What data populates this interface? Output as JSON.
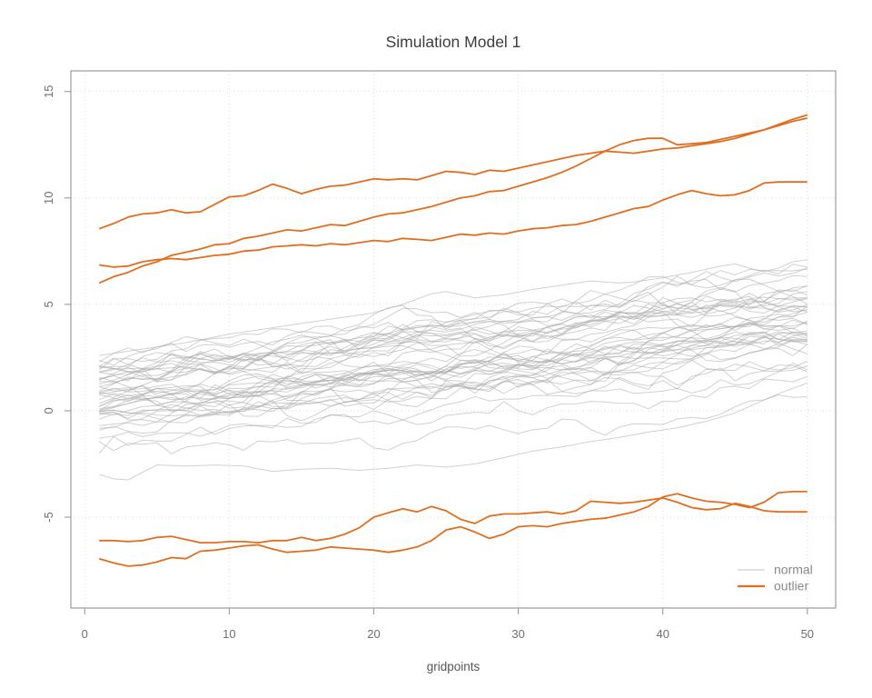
{
  "chart_data": {
    "type": "line",
    "title": "Simulation Model 1",
    "xlabel": "gridpoints",
    "ylabel": "",
    "x_ticks": [
      0,
      10,
      20,
      30,
      40,
      50
    ],
    "y_ticks": [
      -5,
      0,
      5,
      10,
      15
    ],
    "xlim": [
      -0.96,
      51.96
    ],
    "ylim": [
      -9.27,
      15.97
    ],
    "grid": "dotted light-gray gridlines at every x and y tick",
    "n_gridpoints": 50,
    "x_range": [
      1,
      50
    ],
    "colors": {
      "outlier": "#E06E1E",
      "normal": "#C6C6C6",
      "normal_stroke": "#AAAAAA",
      "normal_opacity": 0.55,
      "grid": "#DADADA",
      "frame": "#9B9B9B",
      "tick_text": "#6E6E6E",
      "legend_text": "#8A8A8A"
    },
    "legend": {
      "position": "bottom-right-inside",
      "entries": [
        {
          "label": "normal",
          "color": "#C6C6C6",
          "line_width": 1.1
        },
        {
          "label": "outlier",
          "color": "#E06E1E",
          "line_width": 2.2
        }
      ]
    },
    "series_outliers": [
      {
        "name": "outlier-top-1",
        "values": [
          8.55,
          8.8,
          9.1,
          9.25,
          9.3,
          9.45,
          9.3,
          9.35,
          9.7,
          10.05,
          10.1,
          10.35,
          10.65,
          10.45,
          10.2,
          10.4,
          10.55,
          10.6,
          10.75,
          10.9,
          10.85,
          10.9,
          10.85,
          11.05,
          11.25,
          11.2,
          11.1,
          11.3,
          11.25,
          11.4,
          11.55,
          11.7,
          11.85,
          12.0,
          12.1,
          12.2,
          12.15,
          12.1,
          12.2,
          12.3,
          12.35,
          12.45,
          12.55,
          12.65,
          12.8,
          13.0,
          13.2,
          13.4,
          13.6,
          13.75
        ]
      },
      {
        "name": "outlier-top-2",
        "values": [
          6.0,
          6.3,
          6.5,
          6.8,
          7.0,
          7.3,
          7.45,
          7.6,
          7.8,
          7.85,
          8.1,
          8.2,
          8.35,
          8.5,
          8.45,
          8.6,
          8.75,
          8.7,
          8.9,
          9.1,
          9.25,
          9.3,
          9.45,
          9.6,
          9.8,
          10.0,
          10.1,
          10.3,
          10.35,
          10.55,
          10.75,
          10.95,
          11.2,
          11.5,
          11.85,
          12.2,
          12.5,
          12.7,
          12.8,
          12.8,
          12.5,
          12.55,
          12.6,
          12.75,
          12.9,
          13.05,
          13.2,
          13.45,
          13.7,
          13.9
        ]
      },
      {
        "name": "outlier-top-3",
        "values": [
          6.85,
          6.75,
          6.8,
          7.0,
          7.1,
          7.15,
          7.1,
          7.2,
          7.3,
          7.35,
          7.5,
          7.55,
          7.7,
          7.75,
          7.8,
          7.75,
          7.85,
          7.8,
          7.9,
          8.0,
          7.95,
          8.1,
          8.05,
          8.0,
          8.15,
          8.3,
          8.25,
          8.35,
          8.3,
          8.45,
          8.55,
          8.6,
          8.7,
          8.75,
          8.9,
          9.1,
          9.3,
          9.5,
          9.6,
          9.9,
          10.15,
          10.35,
          10.2,
          10.1,
          10.15,
          10.35,
          10.7,
          10.75,
          10.75,
          10.75
        ]
      },
      {
        "name": "outlier-bottom-1",
        "values": [
          -6.1,
          -6.1,
          -6.15,
          -6.1,
          -5.95,
          -5.9,
          -6.05,
          -6.2,
          -6.2,
          -6.15,
          -6.15,
          -6.2,
          -6.1,
          -6.1,
          -5.95,
          -6.1,
          -6.0,
          -5.8,
          -5.5,
          -5.0,
          -4.8,
          -4.6,
          -4.75,
          -4.5,
          -4.7,
          -5.1,
          -5.3,
          -4.95,
          -4.85,
          -4.85,
          -4.8,
          -4.75,
          -4.85,
          -4.7,
          -4.25,
          -4.3,
          -4.35,
          -4.3,
          -4.2,
          -4.1,
          -4.3,
          -4.55,
          -4.65,
          -4.6,
          -4.35,
          -4.5,
          -4.7,
          -4.75,
          -4.75,
          -4.75
        ]
      },
      {
        "name": "outlier-bottom-2",
        "values": [
          -6.95,
          -7.15,
          -7.3,
          -7.25,
          -7.1,
          -6.9,
          -6.95,
          -6.6,
          -6.55,
          -6.45,
          -6.35,
          -6.3,
          -6.5,
          -6.65,
          -6.6,
          -6.55,
          -6.4,
          -6.45,
          -6.5,
          -6.55,
          -6.65,
          -6.55,
          -6.4,
          -6.1,
          -5.6,
          -5.45,
          -5.7,
          -6.0,
          -5.8,
          -5.45,
          -5.4,
          -5.45,
          -5.3,
          -5.2,
          -5.1,
          -5.05,
          -4.9,
          -4.75,
          -4.5,
          -4.05,
          -3.9,
          -4.1,
          -4.25,
          -4.3,
          -4.4,
          -4.55,
          -4.3,
          -3.85,
          -3.8,
          -3.8
        ]
      }
    ],
    "normal_band": {
      "description": "Approximately 46 light-gray random-walk curves; at x=1 they span y of about -2.3 to 2.7 (one stray near -3) and drift upward to span about 1.4 to 7.1 at x=50; individual wiggles cannot be read exactly from the pixels and are regenerated procedurally.",
      "count": 44,
      "seed": 20,
      "start_mean": 0.55,
      "start_sd": 1.1,
      "start_clamp": [
        -2.3,
        2.7
      ],
      "drift_mean": 3.4,
      "drift_sd": 0.8,
      "drift_clamp": [
        2.2,
        4.6
      ],
      "wiggle_sd": 0.22,
      "wiggle_ar": 0.78,
      "y_clamp": [
        -3.1,
        7.3
      ],
      "edge_lines": {
        "low": [
          [
            1,
            -3.0
          ],
          [
            2,
            -3.2
          ],
          [
            3,
            -3.25
          ],
          [
            5,
            -2.55
          ],
          [
            7,
            -2.6
          ],
          [
            9,
            -2.55
          ],
          [
            11,
            -2.6
          ],
          [
            13,
            -2.85
          ],
          [
            15,
            -2.75
          ],
          [
            17,
            -2.7
          ],
          [
            19,
            -2.8
          ],
          [
            21,
            -2.7
          ],
          [
            23,
            -2.55
          ],
          [
            25,
            -2.65
          ],
          [
            27,
            -2.5
          ],
          [
            29,
            -2.2
          ],
          [
            31,
            -1.9
          ],
          [
            33,
            -1.7
          ],
          [
            35,
            -1.45
          ],
          [
            37,
            -1.25
          ],
          [
            39,
            -1.0
          ],
          [
            41,
            -0.8
          ],
          [
            43,
            -0.5
          ],
          [
            45,
            -0.1
          ],
          [
            47,
            0.5
          ],
          [
            48,
            0.8
          ],
          [
            50,
            1.3
          ]
        ],
        "high": [
          [
            1,
            2.6
          ],
          [
            3,
            2.8
          ],
          [
            5,
            3.0
          ],
          [
            7,
            3.2
          ],
          [
            10,
            3.6
          ],
          [
            13,
            3.9
          ],
          [
            15,
            4.1
          ],
          [
            18,
            4.4
          ],
          [
            20,
            4.6
          ],
          [
            22,
            5.0
          ],
          [
            24,
            5.5
          ],
          [
            25,
            5.6
          ],
          [
            27,
            5.3
          ],
          [
            29,
            5.45
          ],
          [
            31,
            5.7
          ],
          [
            33,
            5.9
          ],
          [
            35,
            6.1
          ],
          [
            37,
            6.0
          ],
          [
            38,
            6.05
          ],
          [
            40,
            6.25
          ],
          [
            42,
            6.5
          ],
          [
            44,
            6.8
          ],
          [
            45,
            6.9
          ],
          [
            46,
            6.7
          ],
          [
            47,
            6.55
          ],
          [
            48,
            6.7
          ],
          [
            49,
            7.0
          ],
          [
            50,
            7.1
          ]
        ]
      }
    }
  }
}
